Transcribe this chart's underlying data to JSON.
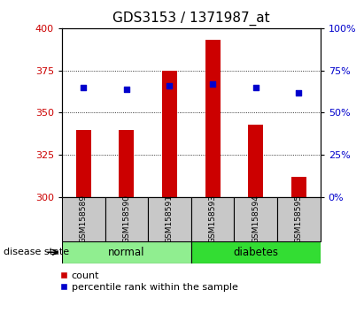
{
  "title": "GDS3153 / 1371987_at",
  "samples": [
    "GSM158589",
    "GSM158590",
    "GSM158591",
    "GSM158593",
    "GSM158594",
    "GSM158595"
  ],
  "counts": [
    340,
    340,
    375,
    393,
    343,
    312
  ],
  "percentiles": [
    65,
    64,
    66,
    67,
    65,
    62
  ],
  "bar_bottom": 300,
  "ylim_left": [
    300,
    400
  ],
  "ylim_right": [
    0,
    100
  ],
  "yticks_left": [
    300,
    325,
    350,
    375,
    400
  ],
  "yticks_right": [
    0,
    25,
    50,
    75,
    100
  ],
  "bar_color": "#cc0000",
  "dot_color": "#0000cc",
  "normal_color": "#90ee90",
  "diabetes_color": "#33dd33",
  "label_bg_color": "#c8c8c8",
  "legend_count": "count",
  "legend_percentile": "percentile rank within the sample",
  "xlabel_group": "disease state",
  "group_label_normal": "normal",
  "group_label_diabetes": "diabetes",
  "title_fontsize": 11,
  "tick_label_color_left": "#cc0000",
  "tick_label_color_right": "#0000cc",
  "fig_width": 4.11,
  "fig_height": 3.54,
  "dpi": 100
}
